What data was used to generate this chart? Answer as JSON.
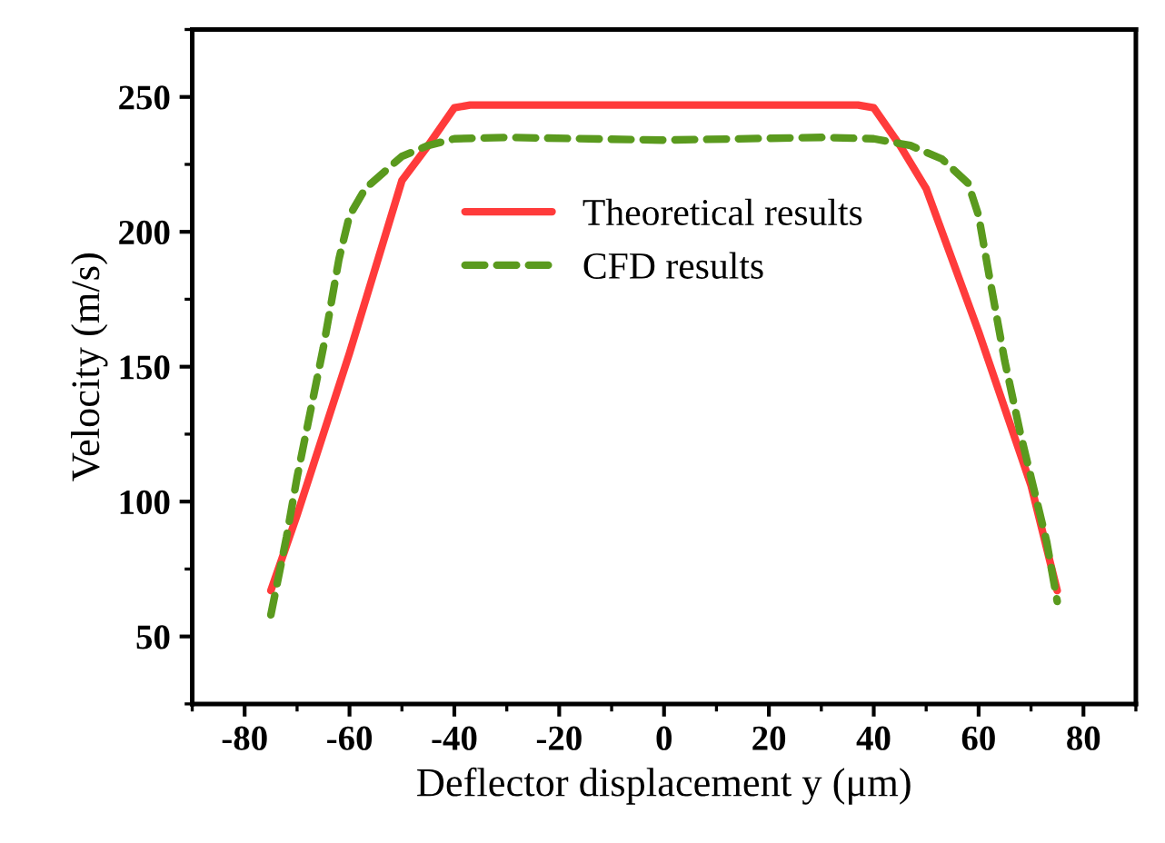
{
  "chart_data": {
    "type": "line",
    "xlabel": "Deflector displacement y (μm)",
    "ylabel": "Velocity (m/s)",
    "xlim": [
      -90,
      90
    ],
    "xticks": [
      -80,
      -60,
      -40,
      -20,
      0,
      20,
      40,
      60,
      80
    ],
    "ylim": [
      25,
      275
    ],
    "yticks": [
      50,
      100,
      150,
      200,
      250
    ],
    "grid": false,
    "legend": "top",
    "series": [
      {
        "name": "Theoretical results",
        "color": "#ff3b3b",
        "line_style": "solid",
        "x": [
          -75,
          -70,
          -60,
          -50,
          -45,
          -40,
          -37,
          37,
          40,
          45,
          50,
          60,
          70,
          75
        ],
        "values": [
          67,
          95,
          155,
          219,
          232,
          246,
          247,
          247,
          246,
          232,
          216,
          163,
          106,
          67
        ]
      },
      {
        "name": "CFD results",
        "color": "#5a9a1e",
        "line_style": "dashed",
        "x": [
          -75,
          -72,
          -70,
          -65,
          -62,
          -60,
          -57,
          -50,
          -45,
          -40,
          -30,
          0,
          30,
          40,
          47,
          53,
          58,
          60,
          62,
          65,
          68,
          70,
          73,
          75
        ],
        "values": [
          58,
          87,
          109,
          157,
          190,
          206,
          216,
          228,
          232,
          234.5,
          235,
          234,
          235,
          234.5,
          232,
          227,
          218,
          206,
          184,
          152,
          125,
          109,
          85,
          63
        ]
      }
    ]
  }
}
